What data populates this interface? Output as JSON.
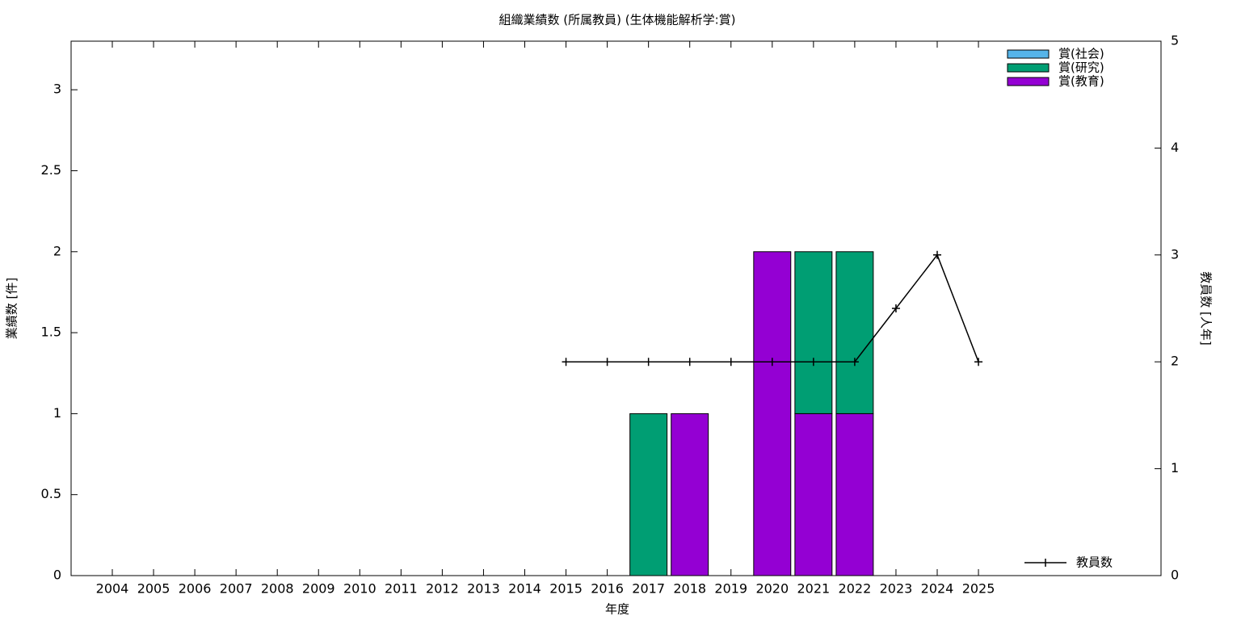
{
  "chart_data": {
    "type": "bar",
    "stacked": true,
    "title": "組織業績数 (所属教員) (生体機能解析学:賞)",
    "x_label": "年度",
    "y_label": "業績数 [件]",
    "y2_label": "教員数 [人年]",
    "categories": [
      "2004",
      "2005",
      "2006",
      "2007",
      "2008",
      "2009",
      "2010",
      "2011",
      "2012",
      "2013",
      "2014",
      "2015",
      "2016",
      "2017",
      "2018",
      "2019",
      "2020",
      "2021",
      "2022",
      "2023",
      "2024",
      "2025"
    ],
    "series": [
      {
        "name": "賞(社会)",
        "color": "#56b4e9",
        "values": [
          0,
          0,
          0,
          0,
          0,
          0,
          0,
          0,
          0,
          0,
          0,
          0,
          0,
          0,
          0,
          0,
          0,
          0,
          0,
          0,
          0,
          0
        ]
      },
      {
        "name": "賞(研究)",
        "color": "#009e73",
        "values": [
          0,
          0,
          0,
          0,
          0,
          0,
          0,
          0,
          0,
          0,
          0,
          0,
          0,
          1,
          0,
          0,
          0,
          1,
          1,
          0,
          0,
          0
        ]
      },
      {
        "name": "賞(教育)",
        "color": "#9400d3",
        "values": [
          0,
          0,
          0,
          0,
          0,
          0,
          0,
          0,
          0,
          0,
          0,
          0,
          0,
          0,
          1,
          0,
          2,
          1,
          1,
          0,
          0,
          0
        ]
      },
      {
        "name": "教員数",
        "type": "line",
        "axis": "y2",
        "color": "#000000",
        "values": [
          null,
          null,
          null,
          null,
          null,
          null,
          null,
          null,
          null,
          null,
          null,
          2,
          2,
          2,
          2,
          2,
          2,
          2,
          2,
          2.5,
          3,
          2
        ]
      }
    ],
    "ylim": [
      0,
      3.3
    ],
    "yticks": [
      0,
      0.5,
      1,
      1.5,
      2,
      2.5,
      3
    ],
    "y2lim": [
      0,
      5
    ],
    "y2ticks": [
      0,
      1,
      2,
      3,
      4,
      5
    ],
    "legend": "top-right"
  }
}
